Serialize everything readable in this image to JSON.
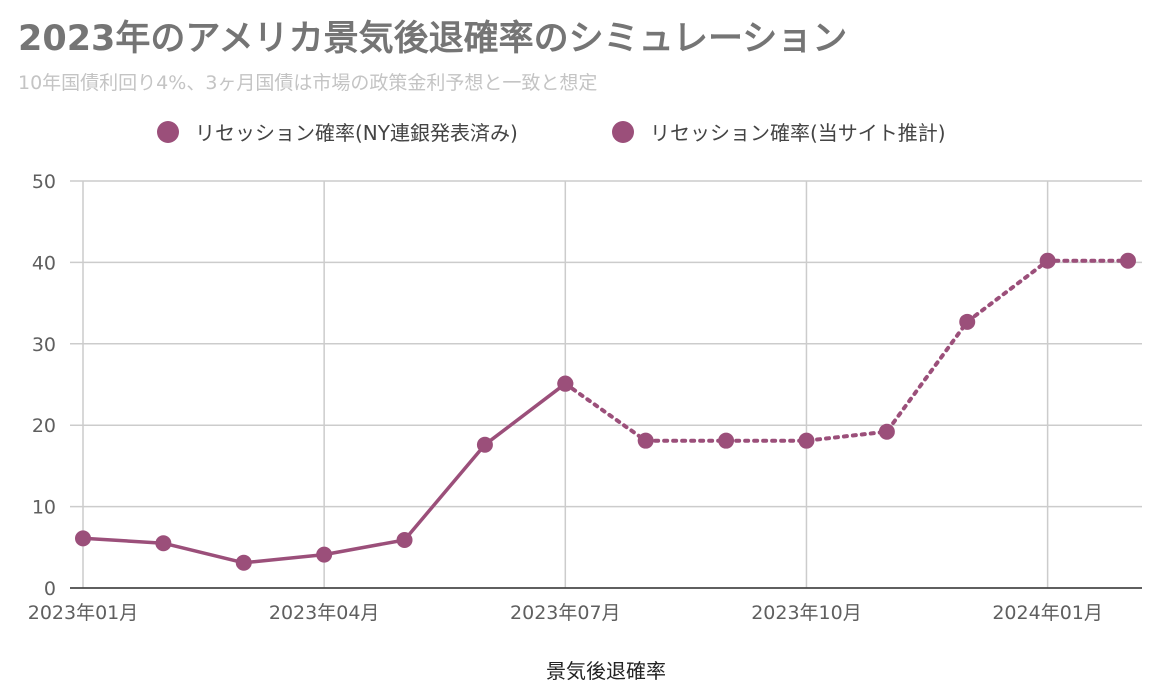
{
  "colors": {
    "series": "#9b4f7a",
    "grid": "#cccccc",
    "axis": "#333333"
  },
  "chart_data": {
    "type": "line",
    "title": "2023年のアメリカ景気後退確率のシミュレーション",
    "subtitle": "10年国債利回り4%、3ヶ月国債は市場の政策金利予想と一致と想定",
    "xlabel": "景気後退確率",
    "ylabel": "",
    "ylim": [
      0,
      50
    ],
    "yticks": [
      0,
      10,
      20,
      30,
      40,
      50
    ],
    "x_tick_labels": [
      "2023年01月",
      "2023年04月",
      "2023年07月",
      "2023年10月",
      "2024年01月"
    ],
    "x": [
      "2023-01",
      "2023-02",
      "2023-03",
      "2023-04",
      "2023-05",
      "2023-06",
      "2023-07",
      "2023-08",
      "2023-09",
      "2023-10",
      "2023-11",
      "2023-12",
      "2024-01",
      "2024-02"
    ],
    "legend_position": "top",
    "grid": true,
    "series": [
      {
        "name": "リセッション確率(NY連銀発表済み)",
        "line_style": "solid",
        "values": [
          6.1,
          5.5,
          3.1,
          4.1,
          5.9,
          17.6,
          25.1,
          null,
          null,
          null,
          null,
          null,
          null,
          null
        ]
      },
      {
        "name": "リセッション確率(当サイト推計)",
        "line_style": "dotted",
        "values": [
          null,
          null,
          null,
          null,
          null,
          null,
          25.1,
          18.1,
          18.1,
          18.1,
          19.2,
          32.7,
          40.2,
          40.2
        ]
      }
    ]
  }
}
